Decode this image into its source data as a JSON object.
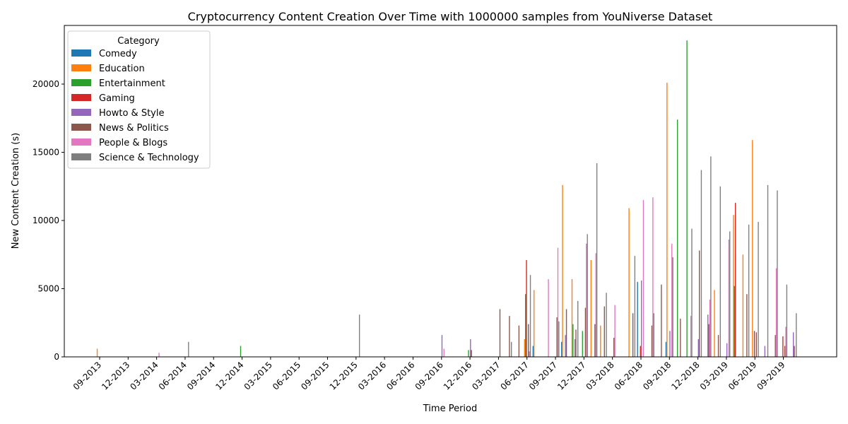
{
  "chart_data": {
    "type": "bar",
    "title": "Cryptocurrency Content Creation Over Time with 1000000 samples from YouNiverse Dataset",
    "xlabel": "Time Period",
    "ylabel": "New Content Creation (s)",
    "ylim": [
      0,
      24300
    ],
    "yticks": [
      0,
      5000,
      10000,
      15000,
      20000
    ],
    "grid": false,
    "legend": {
      "title": "Category",
      "placement": "top-left"
    },
    "tick_labels": [
      "09-2013",
      "12-2013",
      "03-2014",
      "06-2014",
      "09-2014",
      "12-2014",
      "03-2015",
      "06-2015",
      "09-2015",
      "12-2015",
      "03-2016",
      "06-2016",
      "09-2016",
      "12-2016",
      "03-2017",
      "06-2017",
      "09-2017",
      "12-2017",
      "03-2018",
      "06-2018",
      "09-2018",
      "12-2018",
      "03-2019",
      "06-2019",
      "09-2019"
    ],
    "periods": [
      "09-2013",
      "10-2013",
      "11-2013",
      "12-2013",
      "01-2014",
      "02-2014",
      "03-2014",
      "04-2014",
      "05-2014",
      "06-2014",
      "07-2014",
      "08-2014",
      "09-2014",
      "10-2014",
      "11-2014",
      "12-2014",
      "01-2015",
      "02-2015",
      "03-2015",
      "04-2015",
      "05-2015",
      "06-2015",
      "07-2015",
      "08-2015",
      "09-2015",
      "10-2015",
      "11-2015",
      "12-2015",
      "01-2016",
      "02-2016",
      "03-2016",
      "04-2016",
      "05-2016",
      "06-2016",
      "07-2016",
      "08-2016",
      "09-2016",
      "10-2016",
      "11-2016",
      "12-2016",
      "01-2017",
      "02-2017",
      "03-2017",
      "04-2017",
      "05-2017",
      "06-2017",
      "07-2017",
      "08-2017",
      "09-2017",
      "10-2017",
      "11-2017",
      "12-2017",
      "01-2018",
      "02-2018",
      "03-2018",
      "04-2018",
      "05-2018",
      "06-2018",
      "07-2018",
      "08-2018",
      "09-2018",
      "10-2018",
      "11-2018",
      "12-2018",
      "01-2019",
      "02-2019",
      "03-2019",
      "04-2019",
      "05-2019",
      "06-2019",
      "07-2019",
      "08-2019",
      "09-2019",
      "10-2019"
    ],
    "series": [
      {
        "name": "Comedy",
        "color": "#1f77b4",
        "values": [
          0,
          0,
          0,
          0,
          0,
          0,
          0,
          0,
          0,
          0,
          0,
          0,
          0,
          0,
          0,
          0,
          0,
          0,
          0,
          0,
          0,
          0,
          0,
          0,
          0,
          0,
          0,
          0,
          0,
          0,
          0,
          0,
          0,
          0,
          0,
          0,
          0,
          0,
          0,
          0,
          0,
          0,
          0,
          0,
          0,
          0,
          800,
          0,
          0,
          1100,
          0,
          0,
          0,
          0,
          0,
          0,
          0,
          5500,
          0,
          0,
          1100,
          0,
          0,
          0,
          0,
          0,
          0,
          0,
          0,
          0,
          0,
          0,
          0,
          0
        ]
      },
      {
        "name": "Education",
        "color": "#ff7f0e",
        "values": [
          600,
          0,
          0,
          0,
          0,
          0,
          0,
          0,
          0,
          0,
          0,
          0,
          0,
          0,
          0,
          0,
          0,
          0,
          0,
          0,
          0,
          0,
          0,
          0,
          0,
          0,
          0,
          0,
          0,
          0,
          0,
          0,
          0,
          0,
          0,
          0,
          0,
          0,
          0,
          0,
          0,
          0,
          0,
          0,
          0,
          1300,
          4900,
          0,
          0,
          12600,
          5700,
          0,
          7100,
          2300,
          0,
          0,
          10900,
          0,
          0,
          0,
          20100,
          0,
          0,
          0,
          0,
          4900,
          0,
          10400,
          7500,
          15900,
          0,
          0,
          0,
          0
        ]
      },
      {
        "name": "Entertainment",
        "color": "#2ca02c",
        "values": [
          0,
          0,
          0,
          0,
          0,
          0,
          0,
          0,
          0,
          0,
          0,
          0,
          0,
          0,
          0,
          800,
          0,
          0,
          0,
          0,
          0,
          0,
          0,
          0,
          0,
          0,
          0,
          0,
          0,
          0,
          0,
          0,
          0,
          0,
          0,
          0,
          0,
          0,
          0,
          500,
          0,
          0,
          0,
          0,
          0,
          4600,
          0,
          0,
          0,
          0,
          2400,
          1900,
          0,
          0,
          0,
          0,
          0,
          0,
          0,
          0,
          0,
          17400,
          23200,
          0,
          0,
          0,
          0,
          5200,
          0,
          0,
          0,
          0,
          0,
          0
        ]
      },
      {
        "name": "Gaming",
        "color": "#d62728",
        "values": [
          0,
          0,
          0,
          0,
          0,
          0,
          0,
          0,
          0,
          0,
          0,
          0,
          0,
          0,
          0,
          0,
          0,
          0,
          0,
          0,
          0,
          0,
          0,
          0,
          0,
          0,
          0,
          0,
          0,
          0,
          0,
          0,
          0,
          0,
          0,
          0,
          0,
          0,
          0,
          0,
          0,
          0,
          0,
          0,
          0,
          7100,
          0,
          0,
          0,
          0,
          0,
          0,
          0,
          0,
          0,
          0,
          0,
          800,
          0,
          0,
          0,
          0,
          0,
          0,
          0,
          0,
          0,
          11300,
          0,
          1900,
          0,
          0,
          1500,
          0
        ]
      },
      {
        "name": "Howto & Style",
        "color": "#9467bd",
        "values": [
          0,
          0,
          0,
          0,
          0,
          0,
          0,
          0,
          0,
          0,
          0,
          0,
          0,
          0,
          0,
          0,
          0,
          0,
          0,
          0,
          0,
          0,
          0,
          0,
          0,
          0,
          0,
          0,
          0,
          0,
          0,
          0,
          0,
          0,
          0,
          0,
          1600,
          0,
          0,
          1300,
          0,
          0,
          0,
          0,
          0,
          0,
          0,
          0,
          0,
          1600,
          1300,
          0,
          0,
          0,
          0,
          0,
          0,
          5600,
          0,
          0,
          1900,
          0,
          0,
          1300,
          3100,
          0,
          1000,
          0,
          0,
          0,
          800,
          0,
          0,
          1800
        ]
      },
      {
        "name": "News & Politics",
        "color": "#8c564b",
        "values": [
          0,
          0,
          0,
          0,
          0,
          0,
          0,
          0,
          0,
          0,
          0,
          0,
          0,
          0,
          0,
          0,
          0,
          0,
          0,
          0,
          0,
          0,
          0,
          0,
          0,
          0,
          0,
          0,
          0,
          0,
          0,
          0,
          0,
          0,
          0,
          0,
          0,
          0,
          0,
          500,
          0,
          0,
          3500,
          3000,
          2300,
          2400,
          0,
          0,
          2900,
          3500,
          2000,
          3600,
          2400,
          3700,
          1400,
          0,
          3200,
          0,
          2300,
          5300,
          0,
          2800,
          0,
          7800,
          2400,
          1600,
          0,
          0,
          4600,
          1800,
          0,
          1600,
          800,
          800
        ]
      },
      {
        "name": "People & Blogs",
        "color": "#e377c2",
        "values": [
          0,
          0,
          0,
          0,
          0,
          0,
          300,
          0,
          0,
          0,
          0,
          0,
          0,
          0,
          0,
          0,
          0,
          0,
          0,
          0,
          0,
          0,
          0,
          0,
          0,
          0,
          0,
          0,
          0,
          0,
          0,
          0,
          0,
          0,
          0,
          0,
          600,
          0,
          0,
          0,
          0,
          0,
          0,
          0,
          0,
          400,
          0,
          5700,
          8000,
          0,
          0,
          8300,
          7600,
          0,
          3800,
          0,
          0,
          11500,
          11700,
          0,
          8300,
          0,
          3000,
          0,
          4200,
          0,
          8600,
          0,
          0,
          0,
          0,
          6500,
          2200,
          0
        ]
      },
      {
        "name": "Science & Technology",
        "color": "#7f7f7f",
        "values": [
          0,
          0,
          0,
          0,
          0,
          0,
          0,
          0,
          0,
          1100,
          0,
          0,
          0,
          0,
          0,
          0,
          0,
          0,
          0,
          0,
          0,
          0,
          0,
          0,
          0,
          0,
          0,
          3100,
          0,
          0,
          0,
          0,
          0,
          0,
          0,
          0,
          0,
          0,
          0,
          0,
          0,
          0,
          0,
          1100,
          0,
          6000,
          0,
          0,
          2600,
          0,
          4100,
          9000,
          14200,
          4700,
          0,
          0,
          7400,
          0,
          3200,
          0,
          7300,
          0,
          9400,
          13700,
          14700,
          12500,
          9200,
          0,
          9700,
          9900,
          12600,
          12200,
          5300,
          3200
        ]
      }
    ]
  }
}
